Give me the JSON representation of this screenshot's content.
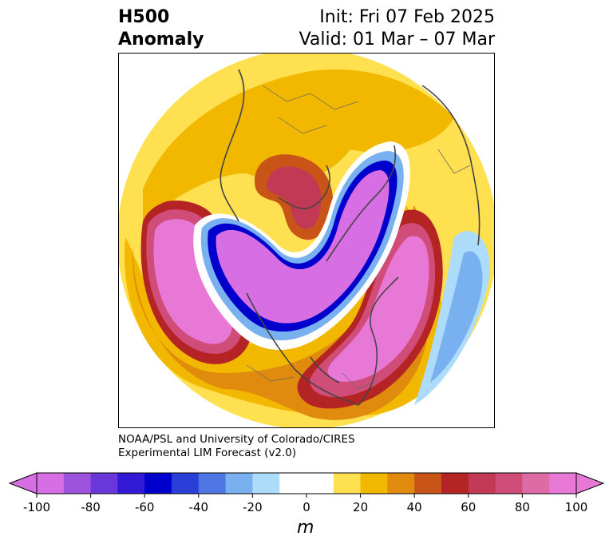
{
  "header": {
    "title_line1": "H500",
    "title_line2": "Anomaly",
    "init": "Init: Fri 07 Feb 2025",
    "valid": "Valid: 01 Mar – 07 Mar"
  },
  "credit": {
    "line1": "NOAA/PSL and University of Colorado/CIRES",
    "line2": "Experimental LIM Forecast (v2.0)"
  },
  "colorbar": {
    "unit": "m",
    "ticks": [
      "-100",
      "-80",
      "-60",
      "-40",
      "-20",
      "0",
      "20",
      "40",
      "60",
      "80",
      "100"
    ],
    "colors": [
      "#d86ee4",
      "#9e53de",
      "#6a37db",
      "#3219d6",
      "#0000cc",
      "#2a3fd8",
      "#4f77e4",
      "#78b0f0",
      "#acdcfa",
      "#ffffff",
      "#ffffff",
      "#fee050",
      "#f2b800",
      "#e08a0e",
      "#c95417",
      "#b42424",
      "#c13954",
      "#d04d7a",
      "#dd6ba6",
      "#e878d6"
    ]
  }
}
